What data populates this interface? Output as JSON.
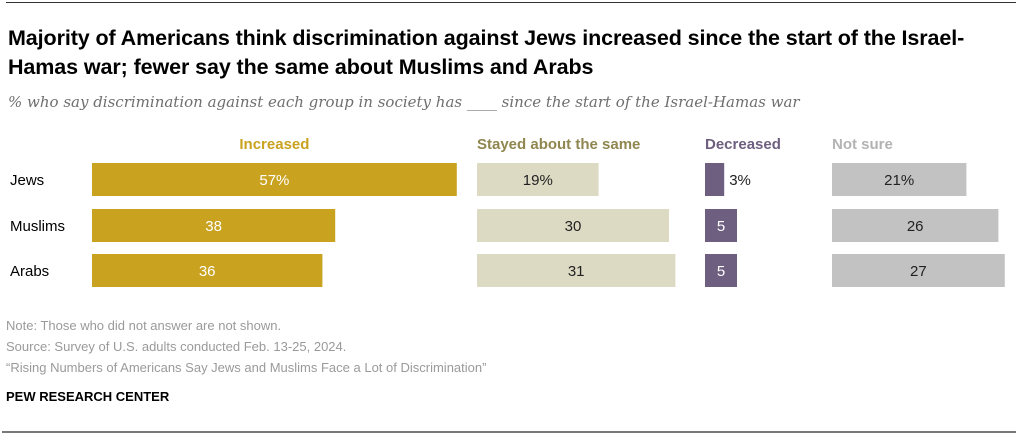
{
  "header": {
    "title": "Majority of Americans think discrimination against Jews increased since the start of the Israel-Hamas war; fewer say the same about Muslims and Arabs",
    "subtitle": "% who say discrimination against each group in society has ____ since the start of the Israel-Hamas war"
  },
  "chart_data": {
    "type": "bar",
    "orientation": "horizontal",
    "stacked": false,
    "title": "Majority of Americans think discrimination against Jews increased since the start of the Israel-Hamas war; fewer say the same about Muslims and Arabs",
    "subtitle": "% who say discrimination against each group in society has ____ since the start of the Israel-Hamas war",
    "xlabel": "",
    "ylabel": "",
    "categories": [
      "Jews",
      "Muslims",
      "Arabs"
    ],
    "series": [
      {
        "name": "Increased",
        "color": "#c9a220",
        "label_color": "#c9a220",
        "text_color": "#ffffff",
        "values": [
          57,
          38,
          36
        ],
        "labels": [
          "57%",
          "38",
          "36"
        ]
      },
      {
        "name": "Stayed about the same",
        "color": "#dcdac3",
        "label_color": "#8f8650",
        "text_color": "#222222",
        "values": [
          19,
          30,
          31
        ],
        "labels": [
          "19%",
          "30",
          "31"
        ]
      },
      {
        "name": "Decreased",
        "color": "#6e5f80",
        "label_color": "#6e5f80",
        "text_color": "#ffffff",
        "values": [
          3,
          5,
          5
        ],
        "labels": [
          "3%",
          "5",
          "5"
        ]
      },
      {
        "name": "Not sure",
        "color": "#c2c2c2",
        "label_color": "#b3b3b3",
        "text_color": "#222222",
        "values": [
          21,
          26,
          27
        ],
        "labels": [
          "21%",
          "26",
          "27"
        ]
      }
    ],
    "grid": false,
    "legend": "column headers above each bar group"
  },
  "footer": {
    "note": "Note: Those who did not answer are not shown.",
    "source": "Source: Survey of U.S. adults conducted Feb. 13-25, 2024.",
    "report": "“Rising Numbers of Americans Say Jews and Muslims Face a Lot of Discrimination”",
    "org": "PEW RESEARCH CENTER"
  }
}
